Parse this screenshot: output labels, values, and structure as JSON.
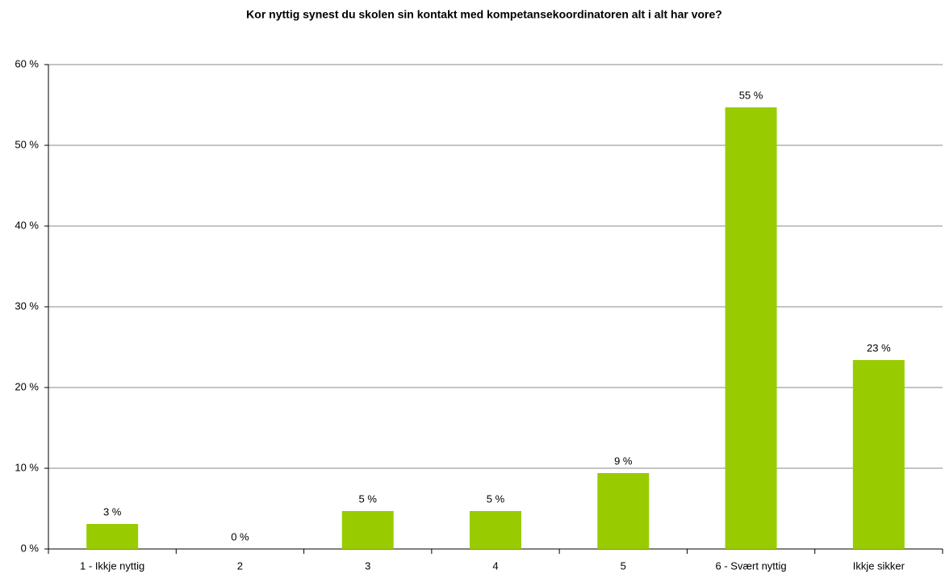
{
  "chart_data": {
    "type": "bar",
    "title": "Kor nyttig synest du skolen sin kontakt  med kompetansekoordinatoren alt i alt har vore?",
    "categories": [
      "1 - Ikkje nyttig",
      "2",
      "3",
      "4",
      "5",
      "6 - Svært nyttig",
      "Ikkje sikker"
    ],
    "values": [
      3.1,
      0,
      4.7,
      4.7,
      9.4,
      54.7,
      23.4
    ],
    "value_labels": [
      "3 %",
      "0 %",
      "5 %",
      "5 %",
      "9 %",
      "55 %",
      "23 %"
    ],
    "color": "#99cc00",
    "ylim": [
      0,
      60
    ],
    "yticks": [
      {
        "value": 0,
        "label": "0 %"
      },
      {
        "value": 10,
        "label": "10 %"
      },
      {
        "value": 20,
        "label": "20 %"
      },
      {
        "value": 30,
        "label": "30 %"
      },
      {
        "value": 40,
        "label": "40 %"
      },
      {
        "value": 50,
        "label": "50 %"
      },
      {
        "value": 60,
        "label": "60 %"
      }
    ],
    "grid": true
  }
}
